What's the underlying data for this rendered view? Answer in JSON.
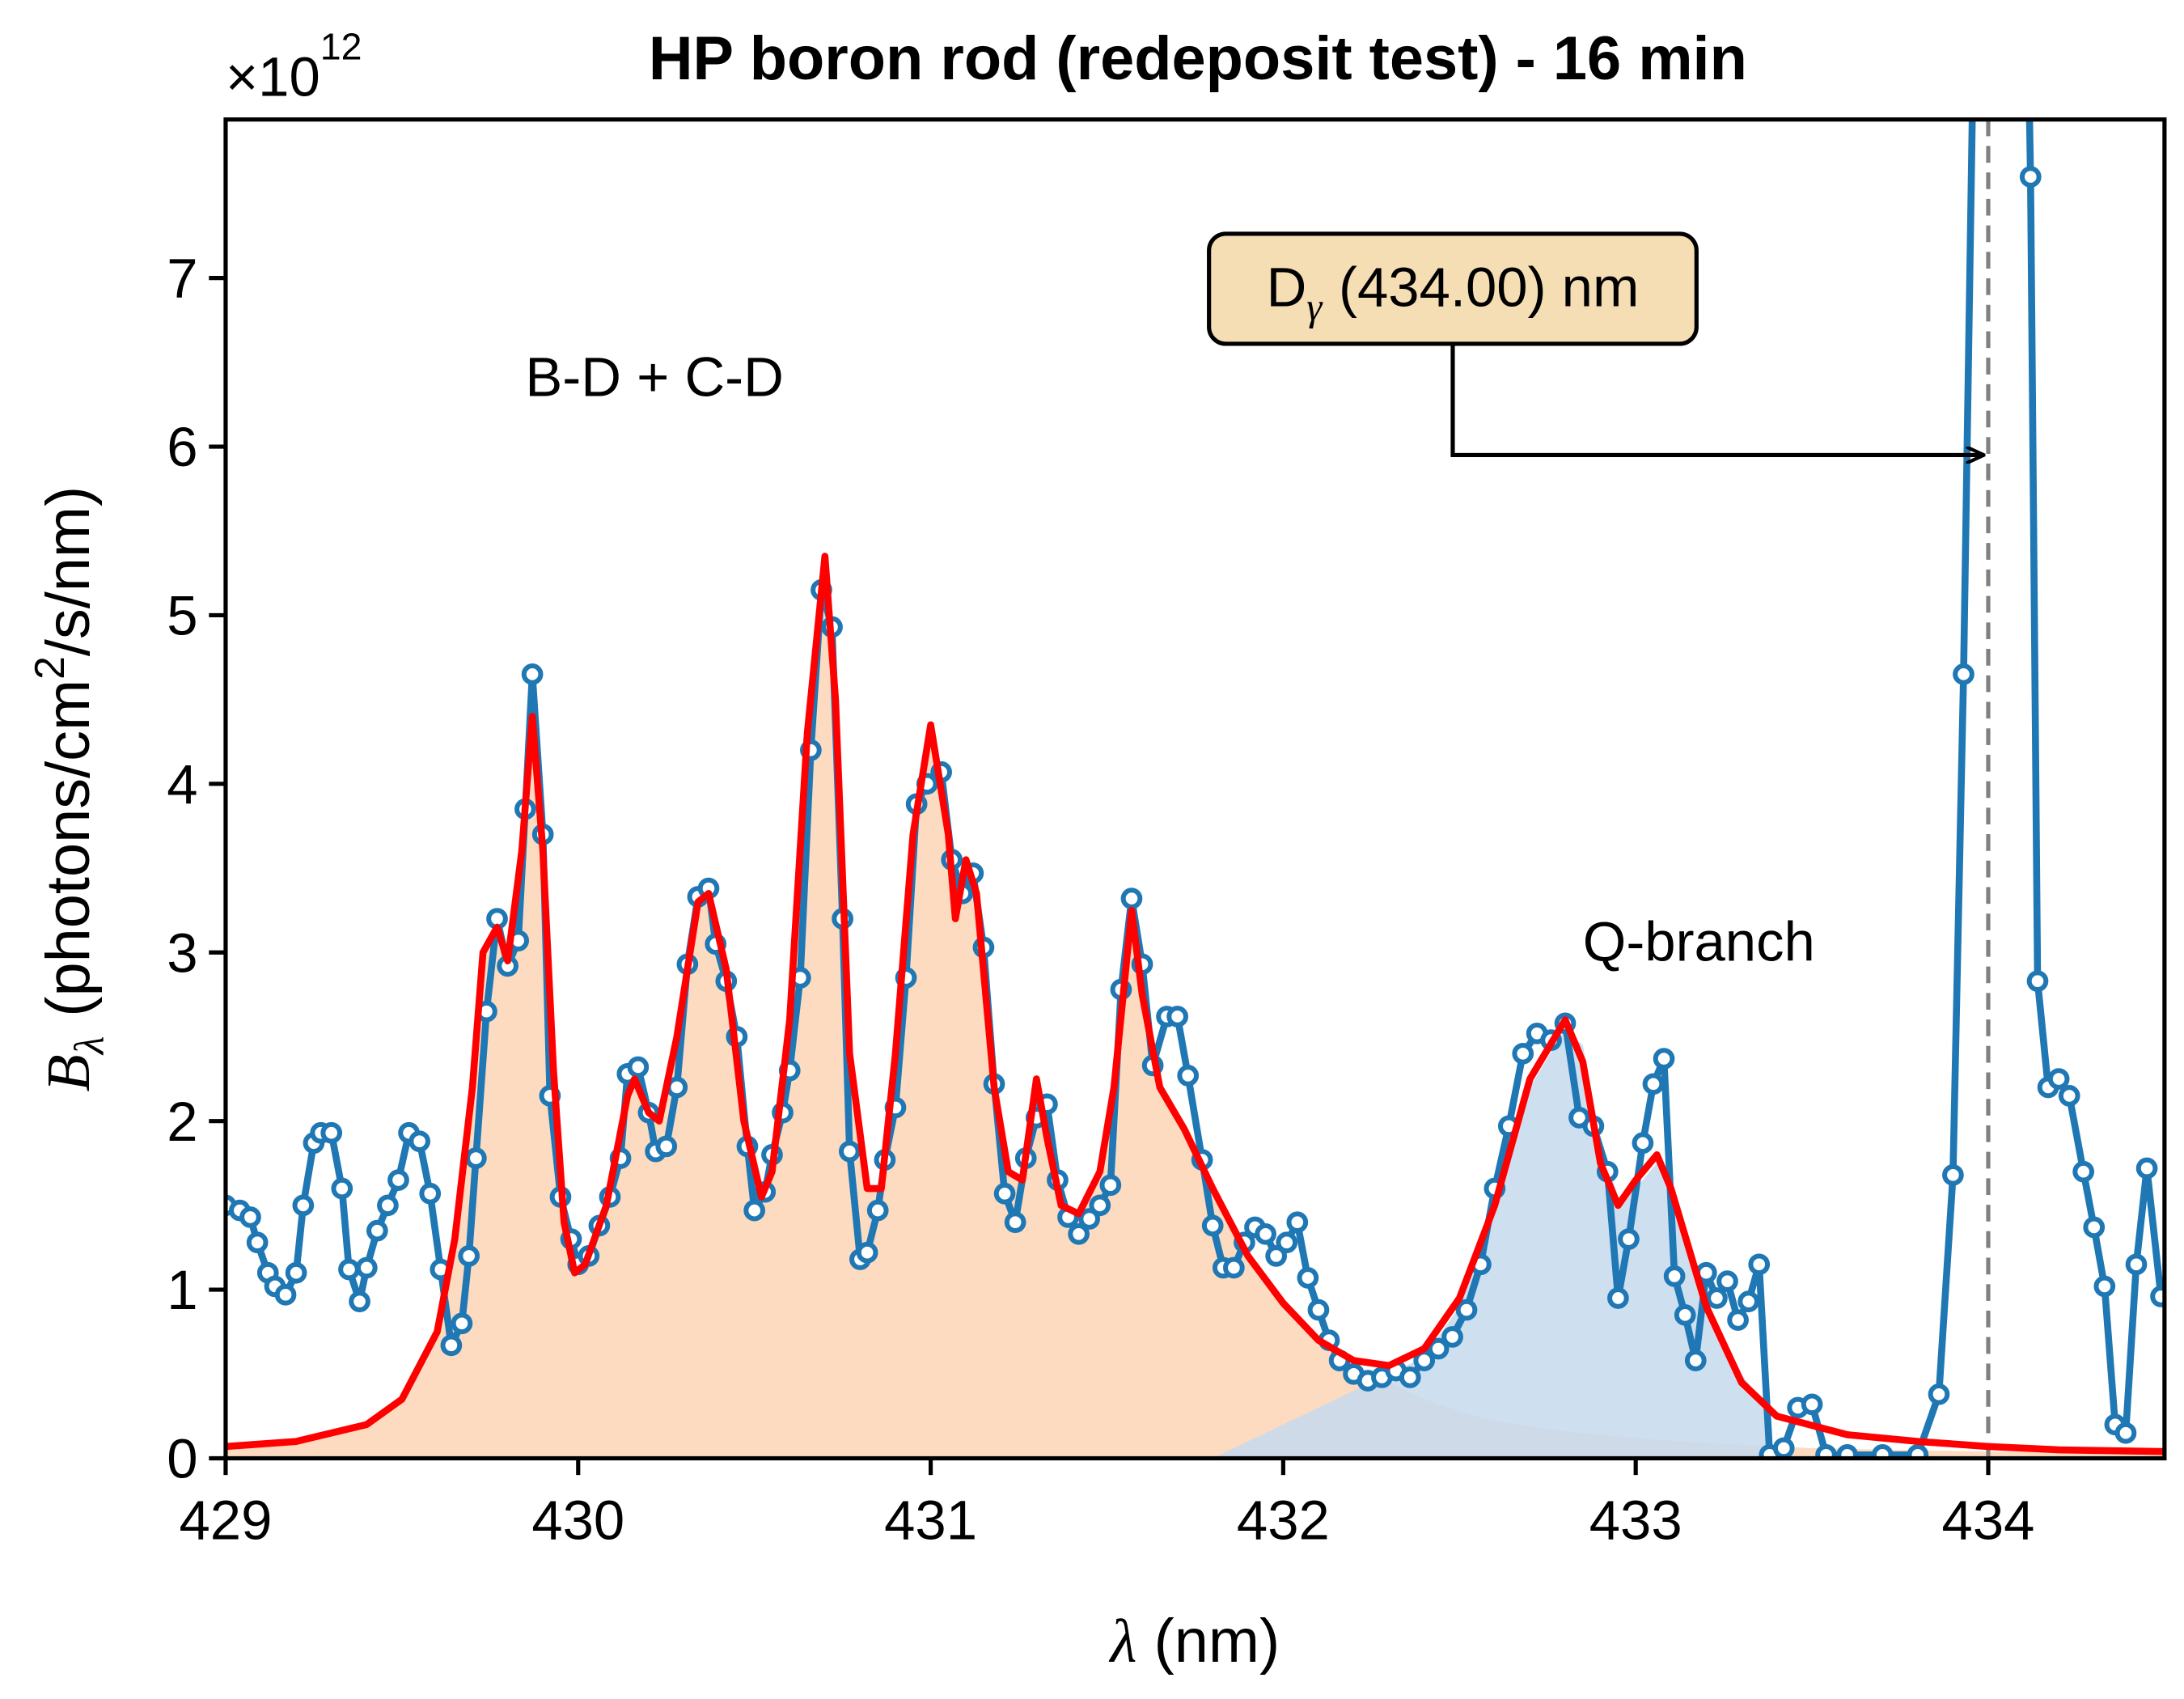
{
  "chart_data": {
    "type": "line",
    "title": "HP boron rod (redeposit test) - 16 min",
    "y_multiplier": {
      "base": "×10",
      "exponent": "12"
    },
    "x_label": {
      "symbol": "λ",
      "text": "(nm)"
    },
    "y_label": {
      "symbol": "B",
      "subscript": "λ",
      "text": "(photons/cm",
      "superscript": "2",
      "tail": "/s/nm)"
    },
    "xlim": [
      429,
      434.5
    ],
    "ylim": [
      0,
      7.94
    ],
    "xticks": [
      429,
      430,
      431,
      432,
      433,
      434
    ],
    "yticks": [
      0,
      1,
      2,
      3,
      4,
      5,
      6,
      7
    ],
    "areas": [
      {
        "color": "#fcd5b5",
        "x": [
          429.0,
          429.2,
          429.4,
          429.5,
          429.6,
          429.65,
          429.7,
          429.73,
          429.77,
          429.8,
          429.84,
          429.87,
          429.9,
          429.93,
          429.96,
          429.99,
          430.02,
          430.08,
          430.14,
          430.16,
          430.2,
          430.23,
          430.28,
          430.34,
          430.37,
          430.42,
          430.47,
          430.52,
          430.55,
          430.6,
          430.65,
          430.7,
          430.73,
          430.77,
          430.82,
          430.86,
          430.9,
          430.95,
          431.0,
          431.05,
          431.07,
          431.1,
          431.13,
          431.18,
          431.22,
          431.26,
          431.3,
          431.33,
          431.37,
          431.42,
          431.48,
          431.52,
          431.57,
          431.6,
          431.65,
          431.72,
          431.8,
          431.9,
          432.0,
          432.1,
          432.2,
          432.3,
          432.4,
          432.5,
          432.6,
          432.8,
          433.0,
          433.2,
          433.5,
          434.0,
          434.5
        ],
        "values": [
          0.07,
          0.1,
          0.2,
          0.35,
          0.75,
          1.3,
          2.2,
          3.0,
          3.15,
          2.95,
          3.6,
          4.4,
          3.6,
          2.3,
          1.4,
          1.1,
          1.15,
          1.5,
          2.15,
          2.25,
          2.05,
          2.0,
          2.5,
          3.3,
          3.35,
          2.9,
          2.0,
          1.55,
          1.7,
          2.6,
          4.3,
          5.35,
          4.5,
          2.4,
          1.6,
          1.6,
          2.4,
          3.7,
          4.35,
          3.7,
          3.2,
          3.55,
          3.35,
          2.2,
          1.7,
          1.65,
          2.25,
          1.9,
          1.5,
          1.45,
          1.7,
          2.2,
          3.25,
          2.75,
          2.2,
          1.95,
          1.6,
          1.2,
          0.9,
          0.68,
          0.55,
          0.45,
          0.35,
          0.28,
          0.22,
          0.16,
          0.12,
          0.09,
          0.06,
          0.04,
          0.03
        ]
      },
      {
        "color": "#c5d9ed",
        "x": [
          431.8,
          432.0,
          432.2,
          432.3,
          432.4,
          432.5,
          432.6,
          432.7,
          432.8,
          432.85,
          432.9,
          432.95,
          433.0,
          433.06,
          433.1,
          433.2,
          433.3,
          433.37,
          433.38
        ],
        "values": [
          0.0,
          0.2,
          0.4,
          0.5,
          0.6,
          0.9,
          1.45,
          2.2,
          2.55,
          2.45,
          1.9,
          1.55,
          1.6,
          1.75,
          1.55,
          0.95,
          0.5,
          0.3,
          0.0
        ]
      }
    ],
    "measured": {
      "color": "#1f77b4",
      "x": [
        429.0,
        429.04,
        429.07,
        429.09,
        429.12,
        429.14,
        429.17,
        429.2,
        429.22,
        429.25,
        429.27,
        429.3,
        429.33,
        429.35,
        429.38,
        429.4,
        429.43,
        429.46,
        429.49,
        429.52,
        429.55,
        429.58,
        429.61,
        429.64,
        429.67,
        429.69,
        429.71,
        429.74,
        429.77,
        429.8,
        429.83,
        429.85,
        429.87,
        429.9,
        429.92,
        429.95,
        429.98,
        430.0,
        430.03,
        430.06,
        430.09,
        430.12,
        430.14,
        430.17,
        430.2,
        430.22,
        430.25,
        430.28,
        430.31,
        430.34,
        430.37,
        430.39,
        430.42,
        430.45,
        430.48,
        430.5,
        430.53,
        430.55,
        430.58,
        430.6,
        430.63,
        430.66,
        430.69,
        430.72,
        430.75,
        430.77,
        430.8,
        430.82,
        430.85,
        430.87,
        430.9,
        430.93,
        430.96,
        430.99,
        431.03,
        431.06,
        431.09,
        431.12,
        431.15,
        431.18,
        431.21,
        431.24,
        431.27,
        431.3,
        431.33,
        431.36,
        431.39,
        431.42,
        431.45,
        431.48,
        431.51,
        431.54,
        431.57,
        431.6,
        431.63,
        431.67,
        431.7,
        431.73,
        431.77,
        431.8,
        431.83,
        431.86,
        431.89,
        431.92,
        431.95,
        431.98,
        432.01,
        432.04,
        432.07,
        432.1,
        432.13,
        432.16,
        432.2,
        432.24,
        432.28,
        432.32,
        432.36,
        432.4,
        432.44,
        432.48,
        432.52,
        432.56,
        432.6,
        432.64,
        432.68,
        432.72,
        432.76,
        432.8,
        432.84,
        432.88,
        432.92,
        432.95,
        432.98,
        433.02,
        433.05,
        433.08,
        433.11,
        433.14,
        433.17,
        433.2,
        433.23,
        433.26,
        433.29,
        433.32,
        433.35,
        433.38,
        433.42,
        433.46,
        433.5,
        433.54,
        433.6,
        433.7,
        433.8,
        433.86,
        433.9,
        433.93,
        433.97,
        434.1,
        434.12,
        434.14,
        434.17,
        434.2,
        434.23,
        434.27,
        434.3,
        434.33,
        434.36,
        434.39,
        434.42,
        434.45,
        434.49
      ],
      "values": [
        1.5,
        1.47,
        1.43,
        1.28,
        1.1,
        1.02,
        0.97,
        1.1,
        1.5,
        1.87,
        1.93,
        1.93,
        1.6,
        1.12,
        0.93,
        1.13,
        1.35,
        1.5,
        1.65,
        1.93,
        1.88,
        1.57,
        1.12,
        0.67,
        0.8,
        1.2,
        1.78,
        2.65,
        3.2,
        2.92,
        3.07,
        3.85,
        4.65,
        3.7,
        2.15,
        1.55,
        1.3,
        1.15,
        1.2,
        1.38,
        1.55,
        1.78,
        2.28,
        2.32,
        2.05,
        1.82,
        1.85,
        2.2,
        2.93,
        3.33,
        3.38,
        3.05,
        2.83,
        2.5,
        1.85,
        1.47,
        1.58,
        1.8,
        2.05,
        2.3,
        2.85,
        4.2,
        5.15,
        4.93,
        3.2,
        1.82,
        1.18,
        1.22,
        1.47,
        1.77,
        2.08,
        2.85,
        3.88,
        4.0,
        4.07,
        3.55,
        3.35,
        3.47,
        3.03,
        2.22,
        1.57,
        1.4,
        1.78,
        2.02,
        2.1,
        1.65,
        1.43,
        1.33,
        1.42,
        1.5,
        1.62,
        2.78,
        3.32,
        2.93,
        2.33,
        2.62,
        2.62,
        2.27,
        1.77,
        1.38,
        1.13,
        1.13,
        1.28,
        1.37,
        1.33,
        1.2,
        1.28,
        1.4,
        1.07,
        0.88,
        0.7,
        0.58,
        0.5,
        0.46,
        0.48,
        0.52,
        0.48,
        0.58,
        0.65,
        0.72,
        0.88,
        1.15,
        1.6,
        1.97,
        2.4,
        2.52,
        2.48,
        2.58,
        2.02,
        1.97,
        1.7,
        0.95,
        1.3,
        1.87,
        2.22,
        2.37,
        1.08,
        0.85,
        0.58,
        1.1,
        0.95,
        1.05,
        0.82,
        0.93,
        1.15,
        0.02,
        0.06,
        0.3,
        0.32,
        0.02,
        0.02,
        0.02,
        0.02,
        0.38,
        1.68,
        4.65,
        10,
        10,
        7.6,
        2.83,
        2.2,
        2.25,
        2.15,
        1.7,
        1.37,
        1.02,
        0.2,
        0.15,
        1.15,
        1.72,
        0.96
      ]
    },
    "fit": {
      "color": "#ff0000",
      "x": [
        429.0,
        429.2,
        429.4,
        429.5,
        429.6,
        429.65,
        429.7,
        429.73,
        429.77,
        429.8,
        429.84,
        429.87,
        429.9,
        429.93,
        429.96,
        429.99,
        430.02,
        430.08,
        430.14,
        430.16,
        430.2,
        430.23,
        430.28,
        430.34,
        430.37,
        430.42,
        430.47,
        430.52,
        430.55,
        430.6,
        430.65,
        430.7,
        430.73,
        430.77,
        430.82,
        430.86,
        430.9,
        430.95,
        431.0,
        431.05,
        431.07,
        431.1,
        431.13,
        431.18,
        431.22,
        431.26,
        431.3,
        431.33,
        431.37,
        431.42,
        431.48,
        431.52,
        431.57,
        431.6,
        431.65,
        431.72,
        431.8,
        431.9,
        432.0,
        432.1,
        432.2,
        432.3,
        432.4,
        432.5,
        432.6,
        432.7,
        432.8,
        432.85,
        432.9,
        432.95,
        433.0,
        433.06,
        433.1,
        433.2,
        433.3,
        433.4,
        433.6,
        433.8,
        434.0,
        434.2,
        434.5
      ],
      "values": [
        0.07,
        0.1,
        0.2,
        0.35,
        0.75,
        1.3,
        2.2,
        3.0,
        3.15,
        2.95,
        3.6,
        4.4,
        3.6,
        2.3,
        1.4,
        1.1,
        1.15,
        1.5,
        2.15,
        2.25,
        2.05,
        2.0,
        2.5,
        3.3,
        3.35,
        2.9,
        2.0,
        1.55,
        1.7,
        2.6,
        4.3,
        5.35,
        4.5,
        2.4,
        1.6,
        1.6,
        2.4,
        3.7,
        4.35,
        3.7,
        3.2,
        3.55,
        3.35,
        2.2,
        1.7,
        1.65,
        2.25,
        1.9,
        1.5,
        1.45,
        1.7,
        2.2,
        3.25,
        2.75,
        2.2,
        1.95,
        1.6,
        1.2,
        0.92,
        0.7,
        0.58,
        0.55,
        0.65,
        0.95,
        1.5,
        2.25,
        2.6,
        2.35,
        1.75,
        1.5,
        1.65,
        1.8,
        1.6,
        0.9,
        0.45,
        0.25,
        0.14,
        0.1,
        0.07,
        0.05,
        0.04
      ]
    },
    "reference_line": {
      "x": 434.0,
      "color": "#808080"
    },
    "annotations": [
      {
        "text": "B-D + C-D",
        "x": 429.85,
        "y": 6.3
      },
      {
        "text": "Q-branch",
        "x": 432.85,
        "y": 2.95
      }
    ],
    "callout": {
      "symbol": "D",
      "subscript": "γ",
      "text": "(434.00) nm",
      "color": "#f5deb3"
    }
  }
}
